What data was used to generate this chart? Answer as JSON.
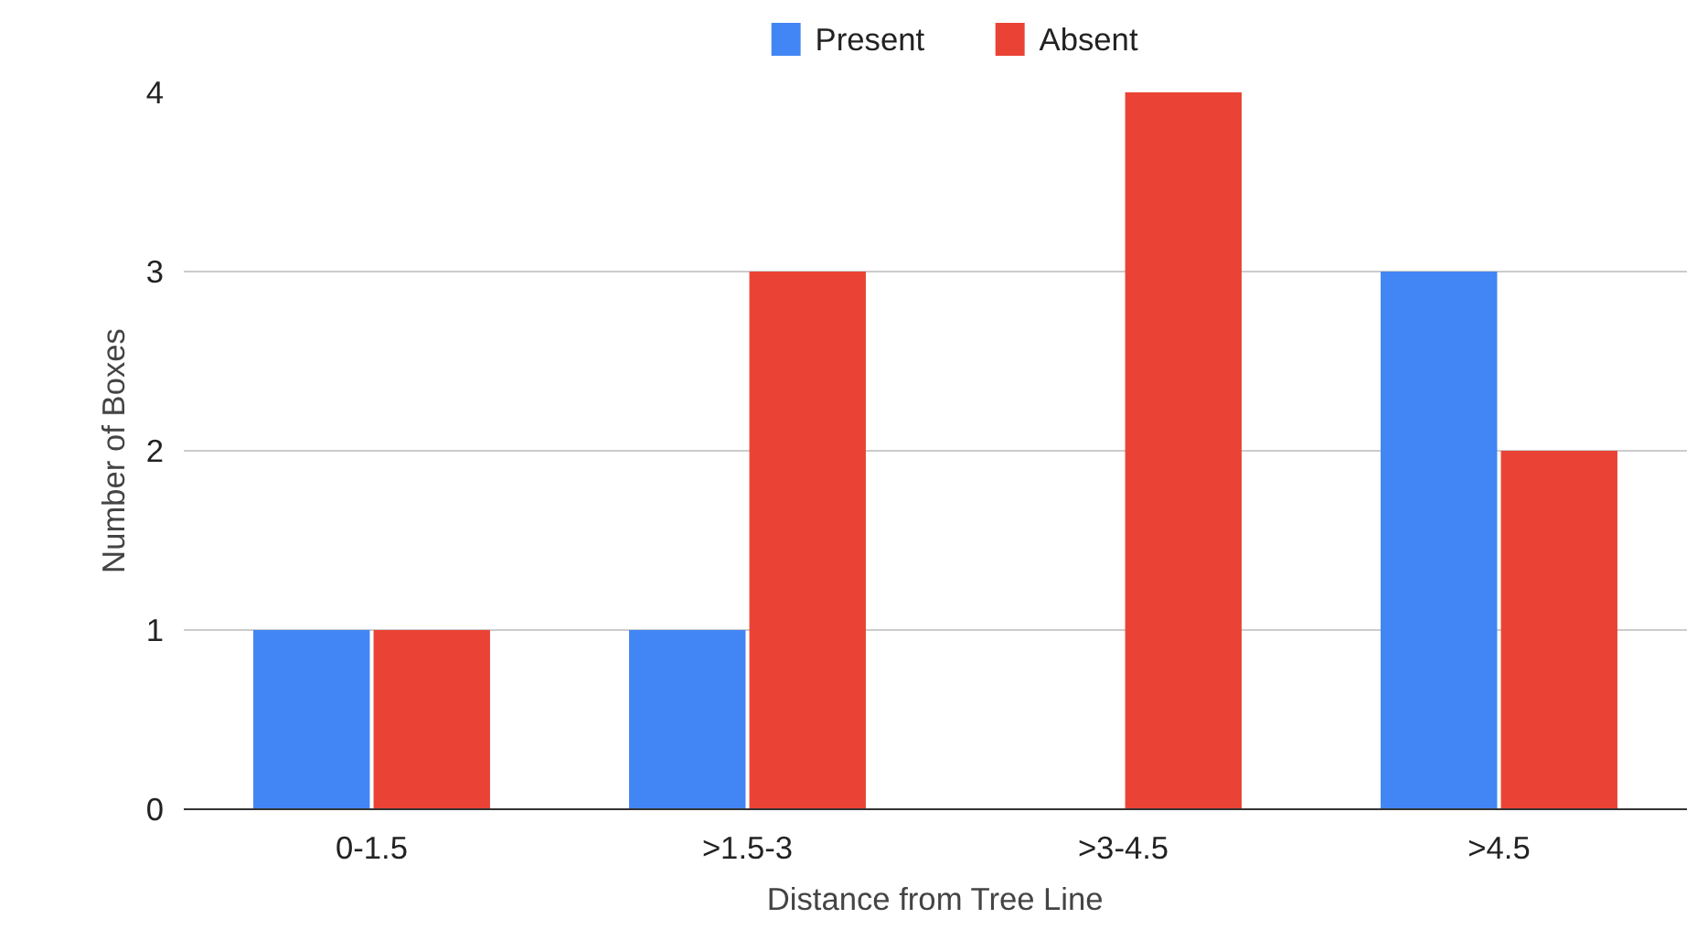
{
  "chart_data": {
    "type": "bar",
    "xlabel": "Distance from Tree Line",
    "ylabel": "Number of Boxes",
    "categories": [
      "0-1.5",
      ">1.5-3",
      ">3-4.5",
      ">4.5"
    ],
    "series": [
      {
        "name": "Present",
        "color": "#4285f4",
        "values": [
          1,
          1,
          0,
          3
        ]
      },
      {
        "name": "Absent",
        "color": "#ea4335",
        "values": [
          1,
          3,
          4,
          2
        ]
      }
    ],
    "ylim": [
      0,
      4
    ],
    "yticks": [
      0,
      1,
      2,
      3,
      4
    ],
    "grid": "y",
    "legend": "top"
  }
}
